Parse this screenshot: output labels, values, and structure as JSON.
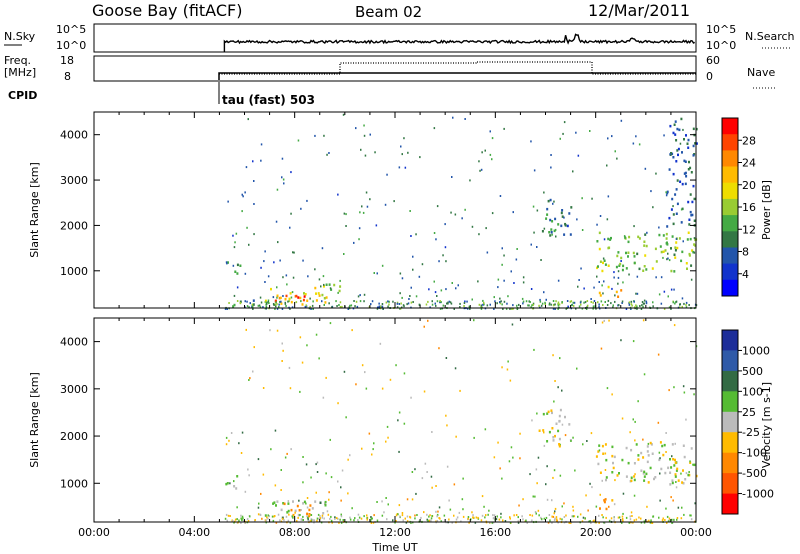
{
  "header": {
    "title": "Goose Bay (fitACF)",
    "beam": "Beam 02",
    "date": "12/Mar/2011"
  },
  "panels": {
    "nsky_label": "N.Sky",
    "nsearch_label": "N.Search",
    "freq_label": "Freq.",
    "freq_unit": "[MHz]",
    "nave_label": "Nave",
    "cpid_label": "CPID",
    "cpid_value": "tau (fast) 503",
    "noise_left_ticks": [
      "10^5",
      "10^0"
    ],
    "noise_right_ticks": [
      "10^5",
      "10^0"
    ],
    "freq_left_ticks": [
      "18",
      "8"
    ],
    "freq_right_ticks": [
      "60",
      "0"
    ]
  },
  "axes": {
    "ylabel": "Slant Range [km]",
    "xlabel": "Time UT",
    "yticks": [
      "1000",
      "2000",
      "3000",
      "4000"
    ],
    "xticks": [
      "00:00",
      "04:00",
      "08:00",
      "12:00",
      "16:00",
      "20:00",
      "00:00"
    ]
  },
  "colorbars": {
    "power": {
      "label": "Power [dB]",
      "ticks": [
        "28",
        "24",
        "20",
        "16",
        "12",
        "8",
        "4"
      ],
      "colors": [
        "#ff0000",
        "#ff4400",
        "#ff8800",
        "#ffbb00",
        "#eedd00",
        "#99cc33",
        "#44aa44",
        "#337744",
        "#2255aa",
        "#1133cc",
        "#0000ff"
      ]
    },
    "velocity": {
      "label": "Velocity [m s-1]",
      "ticks": [
        "1000",
        "500",
        "100",
        "25",
        "-25",
        "-100",
        "-500",
        "-1000"
      ],
      "colors": [
        "#1c2d99",
        "#2f5aa8",
        "#336b44",
        "#55bb33",
        "#bbbbbb",
        "#ffbb00",
        "#ff8800",
        "#ff5500",
        "#ff0000"
      ]
    }
  },
  "chart_data": {
    "type": "heatmap",
    "title": "Goose Bay (fitACF)",
    "xlabel": "Time UT",
    "ylabel": "Slant Range [km]",
    "xlim_hours": [
      0,
      24
    ],
    "ylim_km": [
      180,
      4500
    ],
    "data_start_hour": 5.2,
    "power_regions": [
      {
        "t0": 5.2,
        "t1": 5.8,
        "r0": 900,
        "r1": 1250,
        "dB": 10
      },
      {
        "t0": 5.2,
        "t1": 6.5,
        "r0": 200,
        "r1": 400,
        "dB": 9
      },
      {
        "t0": 6.8,
        "t1": 9.3,
        "r0": 250,
        "r1": 650,
        "dB": 20
      },
      {
        "t0": 7.2,
        "t1": 8.6,
        "r0": 300,
        "r1": 500,
        "dB": 28
      },
      {
        "t0": 9.0,
        "t1": 10.1,
        "r0": 550,
        "r1": 800,
        "dB": 13
      },
      {
        "t0": 17.7,
        "t1": 19.0,
        "r0": 1800,
        "r1": 2600,
        "dB": 8
      },
      {
        "t0": 20.0,
        "t1": 24.0,
        "r0": 1000,
        "r1": 1900,
        "dB": 14
      },
      {
        "t0": 20.1,
        "t1": 21.0,
        "r0": 450,
        "r1": 700,
        "dB": 22
      },
      {
        "t0": 22.8,
        "t1": 24.0,
        "r0": 2000,
        "r1": 4400,
        "dB": 6
      }
    ],
    "velocity_regions": [
      {
        "t0": 5.2,
        "t1": 5.8,
        "r0": 900,
        "r1": 1250,
        "v": 0
      },
      {
        "t0": 6.8,
        "t1": 9.3,
        "r0": 250,
        "r1": 650,
        "v": 50
      },
      {
        "t0": 7.2,
        "t1": 8.6,
        "r0": 300,
        "r1": 600,
        "v": -150
      },
      {
        "t0": 17.7,
        "t1": 19.0,
        "r0": 1800,
        "r1": 2600,
        "v": 0
      },
      {
        "t0": 20.0,
        "t1": 24.0,
        "r0": 1000,
        "r1": 1900,
        "v": 0
      },
      {
        "t0": 20.1,
        "t1": 21.0,
        "r0": 450,
        "r1": 700,
        "v": -150
      }
    ]
  }
}
